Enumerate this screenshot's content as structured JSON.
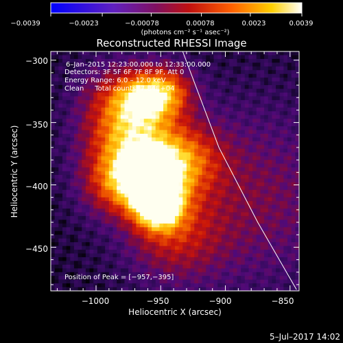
{
  "chart_data": {
    "type": "heatmap",
    "title": "Reconstructed RHESSI Image",
    "xlabel": "Heliocentric X (arcsec)",
    "ylabel": "Heliocentric Y (arcsec)",
    "xlim": [
      -1035,
      -843
    ],
    "ylim": [
      -485,
      -293
    ],
    "xticks": [
      -1000,
      -950,
      -900,
      -850
    ],
    "yticks": [
      -300,
      -350,
      -400,
      -450
    ],
    "xtick_labels": [
      "−1000",
      "−950",
      "−900",
      "−850"
    ],
    "ytick_labels": [
      "−300",
      "−350",
      "−400",
      "−450"
    ],
    "colorbar": {
      "range": [
        -0.0039,
        0.0039
      ],
      "tick_labels": [
        "−0.0039",
        "−0.0023",
        "−0.00078",
        "0.00078",
        "0.0023",
        "0.0039"
      ],
      "label": "(photons cm⁻² s⁻¹ asec⁻²)",
      "colormap": "blue-purple-red-orange-yellow-white"
    },
    "annotations": [
      "6–Jan–2015 12:23:00.000 to 12:33:00.000",
      "Detectors: 3F 5F 6F 7F 8F 9F, Att 0",
      "Energy Range: 6.0 – 12.0 keV",
      "Clean     Total counts: 7.84E+04",
      "Position of Peak = [−957,−395]"
    ],
    "peak": {
      "x": -957,
      "y": -395
    },
    "sources": [
      {
        "x": -957,
        "y": -395,
        "sigma": 15,
        "amp": 1.0
      },
      {
        "x": -952,
        "y": -418,
        "sigma": 13,
        "amp": 0.85
      },
      {
        "x": -972,
        "y": -365,
        "sigma": 24,
        "amp": 0.72
      },
      {
        "x": -945,
        "y": -325,
        "sigma": 14,
        "amp": 0.55
      },
      {
        "x": -965,
        "y": -330,
        "sigma": 14,
        "amp": 0.5
      },
      {
        "x": -985,
        "y": -400,
        "sigma": 18,
        "amp": 0.45
      },
      {
        "x": -930,
        "y": -380,
        "sigma": 20,
        "amp": 0.45
      },
      {
        "x": -940,
        "y": -440,
        "sigma": 25,
        "amp": 0.35
      },
      {
        "x": -880,
        "y": -410,
        "sigma": 50,
        "amp": 0.25
      },
      {
        "x": -985,
        "y": -330,
        "sigma": 20,
        "amp": 0.3
      }
    ],
    "limb_curve": [
      {
        "x": -933,
        "y": -293
      },
      {
        "x": -905,
        "y": -370
      },
      {
        "x": -875,
        "y": -430
      },
      {
        "x": -845,
        "y": -484
      }
    ]
  },
  "footer": {
    "date": "5–Jul–2017 14:02"
  }
}
